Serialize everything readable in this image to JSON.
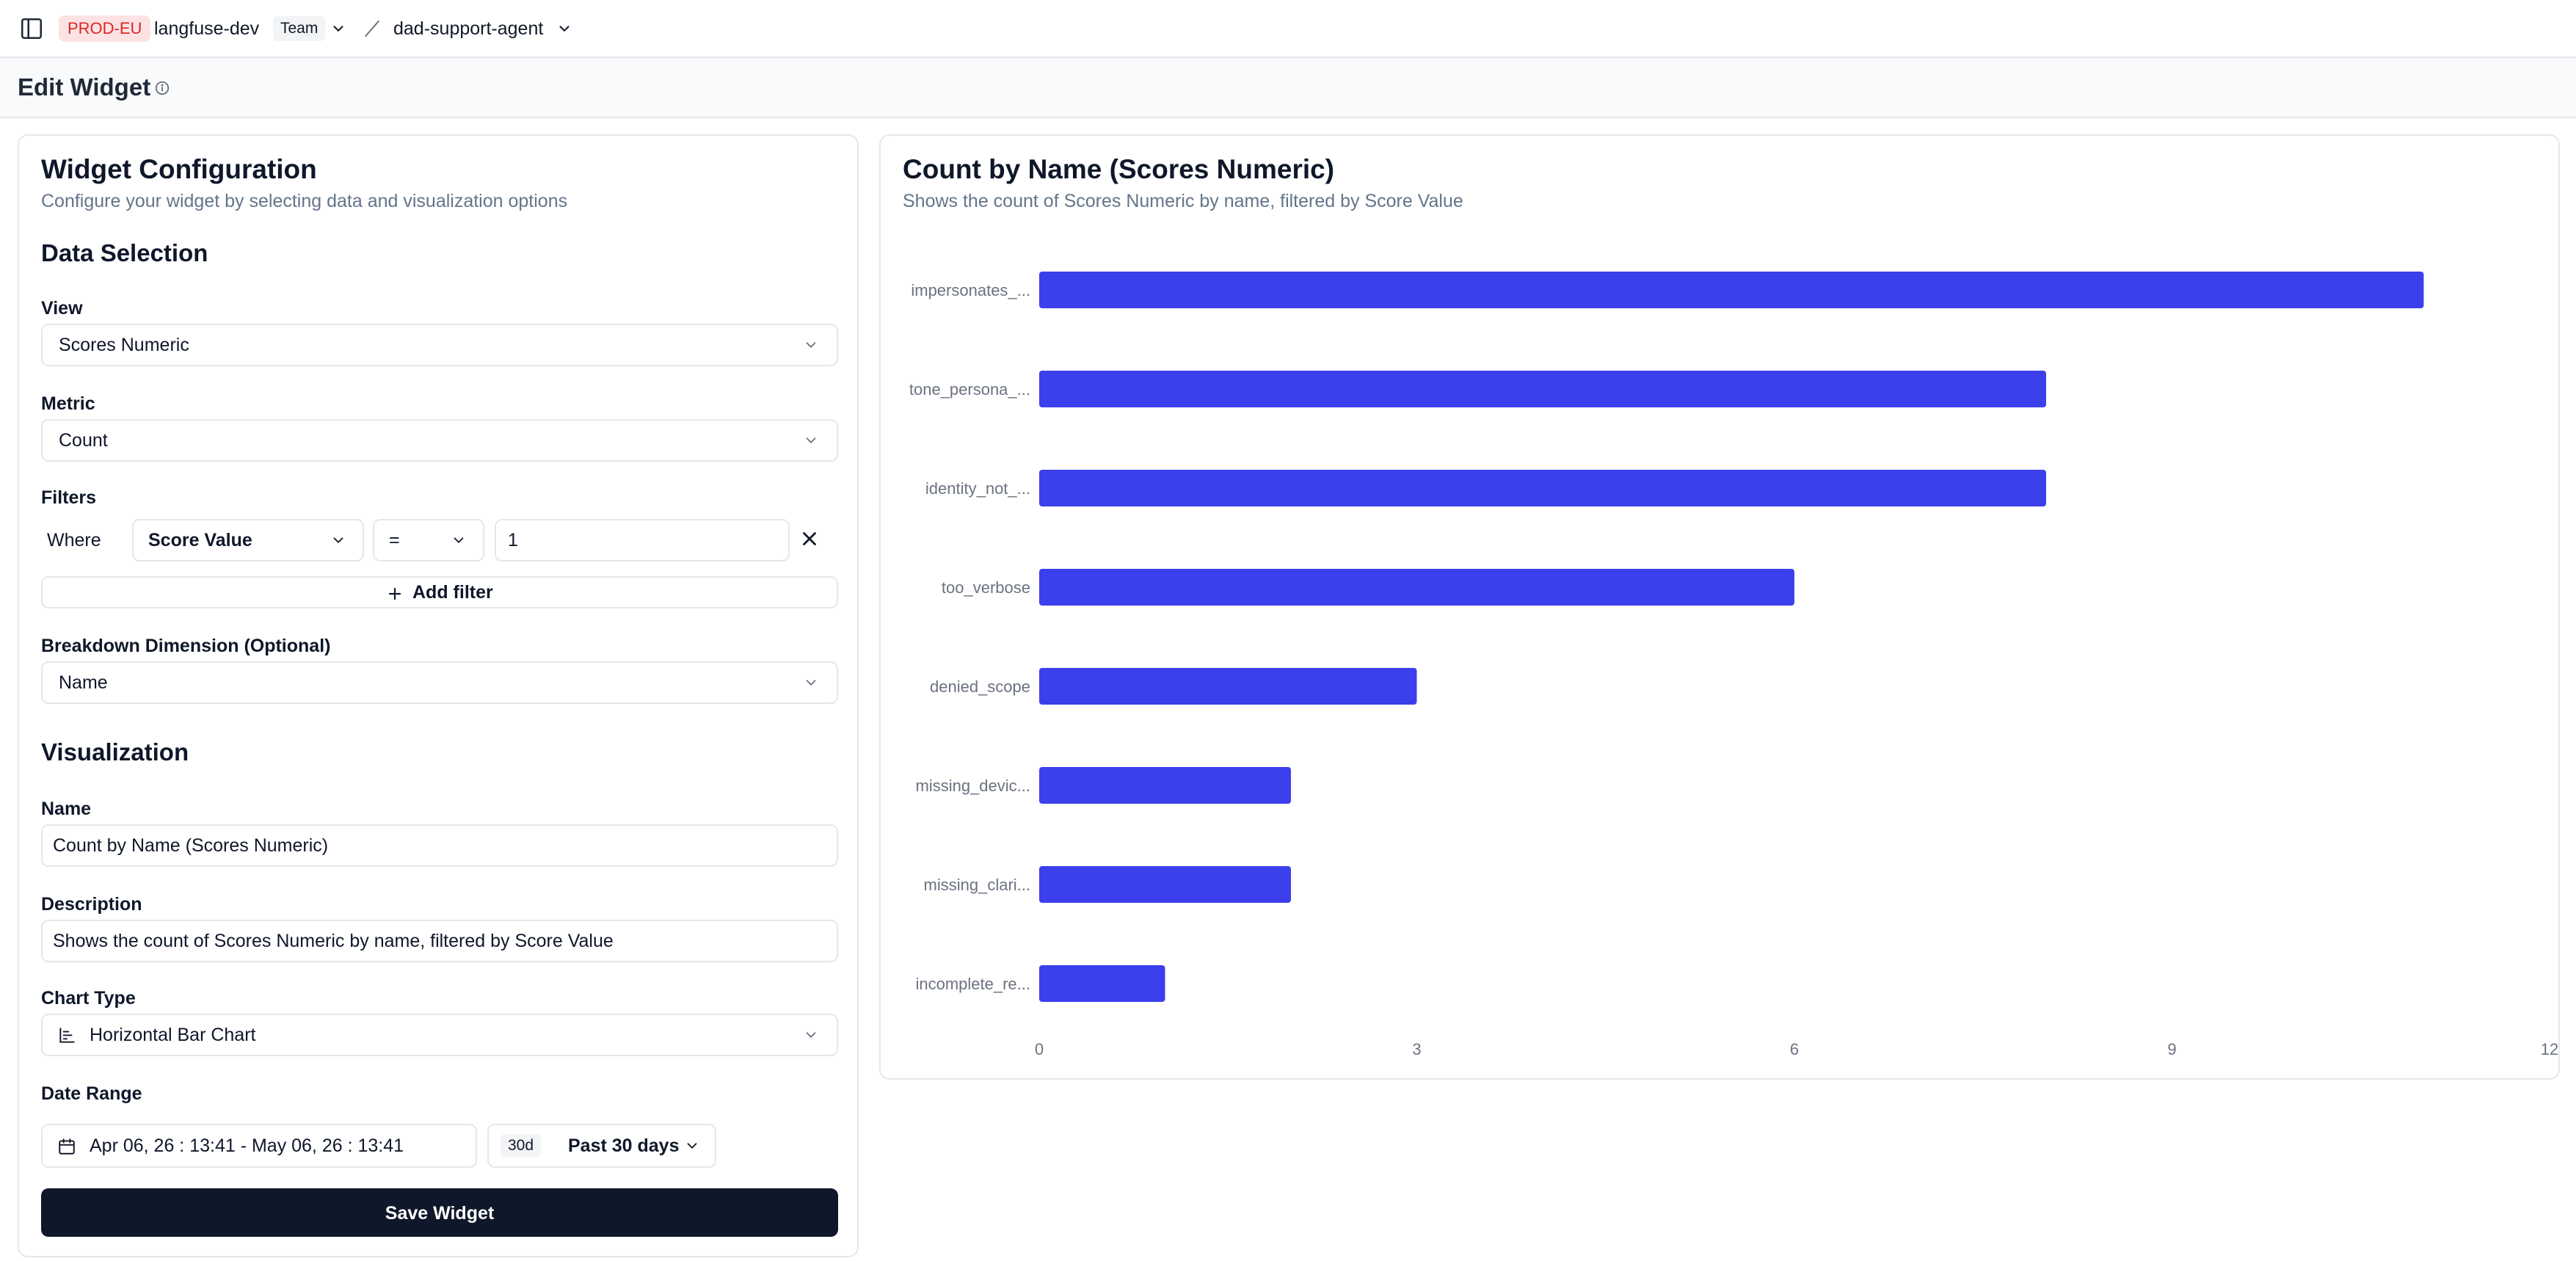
{
  "topbar": {
    "env_badge": "PROD-EU",
    "org_name": "langfuse-dev",
    "team_badge": "Team",
    "project_name": "dad-support-agent"
  },
  "page": {
    "title": "Edit Widget"
  },
  "config": {
    "title": "Widget Configuration",
    "subtitle": "Configure your widget by selecting data and visualization options",
    "data_selection_heading": "Data Selection",
    "view_label": "View",
    "view_value": "Scores Numeric",
    "metric_label": "Metric",
    "metric_value": "Count",
    "filters_label": "Filters",
    "filter": {
      "where_label": "Where",
      "field": "Score Value",
      "operator": "=",
      "value": "1"
    },
    "add_filter_label": "Add filter",
    "breakdown_label": "Breakdown Dimension (Optional)",
    "breakdown_value": "Name",
    "visualization_heading": "Visualization",
    "name_label": "Name",
    "name_value": "Count by Name (Scores Numeric)",
    "description_label": "Description",
    "description_value": "Shows the count of Scores Numeric by name, filtered by Score Value",
    "chart_type_label": "Chart Type",
    "chart_type_value": "Horizontal Bar Chart",
    "date_range_label": "Date Range",
    "date_range_value": "Apr 06, 26 : 13:41 - May 06, 26 : 13:41",
    "preset_badge": "30d",
    "preset_value": "Past 30 days",
    "save_label": "Save Widget"
  },
  "chart_data": {
    "type": "bar",
    "orientation": "horizontal",
    "title": "Count by Name (Scores Numeric)",
    "subtitle": "Shows the count of Scores Numeric by name, filtered by Score Value",
    "categories": [
      "impersonates_...",
      "tone_persona_...",
      "identity_not_...",
      "too_verbose",
      "denied_scope",
      "missing_devic...",
      "missing_clari...",
      "incomplete_re..."
    ],
    "values": [
      11,
      8,
      8,
      6,
      3,
      2,
      2,
      1
    ],
    "xlim": [
      0,
      12
    ],
    "x_ticks": [
      "0",
      "3",
      "6",
      "9",
      "12"
    ],
    "x_tick_values": [
      0,
      3,
      6,
      9,
      12
    ],
    "grid": false,
    "bar_color": "#3b3fec"
  },
  "colors": {
    "primary_button": "#0f172a",
    "env_badge_bg": "#fde2e4",
    "env_badge_text": "#dc2626"
  },
  "icons": {
    "sidebar_toggle": "sidebar-toggle-icon",
    "info": "info-icon",
    "chevron": "chevron-down-icon",
    "close": "close-icon",
    "plus": "plus-icon",
    "chart": "bar-chart-icon",
    "calendar": "calendar-icon"
  }
}
